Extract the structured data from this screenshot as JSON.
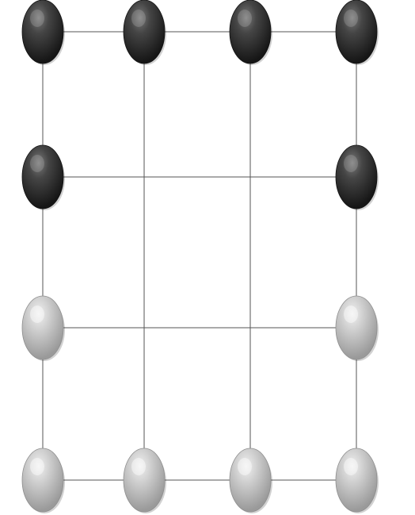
{
  "board": {
    "columns": 4,
    "rows": 4,
    "colors": {
      "background": "#ffffff",
      "grid_line": "#555555",
      "dark_stone": "#333333",
      "light_stone": "#c9c9c9"
    },
    "stones": [
      {
        "row": 0,
        "col": 0,
        "color": "dark"
      },
      {
        "row": 0,
        "col": 1,
        "color": "dark"
      },
      {
        "row": 0,
        "col": 2,
        "color": "dark"
      },
      {
        "row": 0,
        "col": 3,
        "color": "dark"
      },
      {
        "row": 1,
        "col": 0,
        "color": "dark"
      },
      {
        "row": 1,
        "col": 3,
        "color": "dark"
      },
      {
        "row": 2,
        "col": 0,
        "color": "light"
      },
      {
        "row": 2,
        "col": 3,
        "color": "light"
      },
      {
        "row": 3,
        "col": 0,
        "color": "light"
      },
      {
        "row": 3,
        "col": 1,
        "color": "light"
      },
      {
        "row": 3,
        "col": 2,
        "color": "light"
      },
      {
        "row": 3,
        "col": 3,
        "color": "light"
      }
    ]
  }
}
